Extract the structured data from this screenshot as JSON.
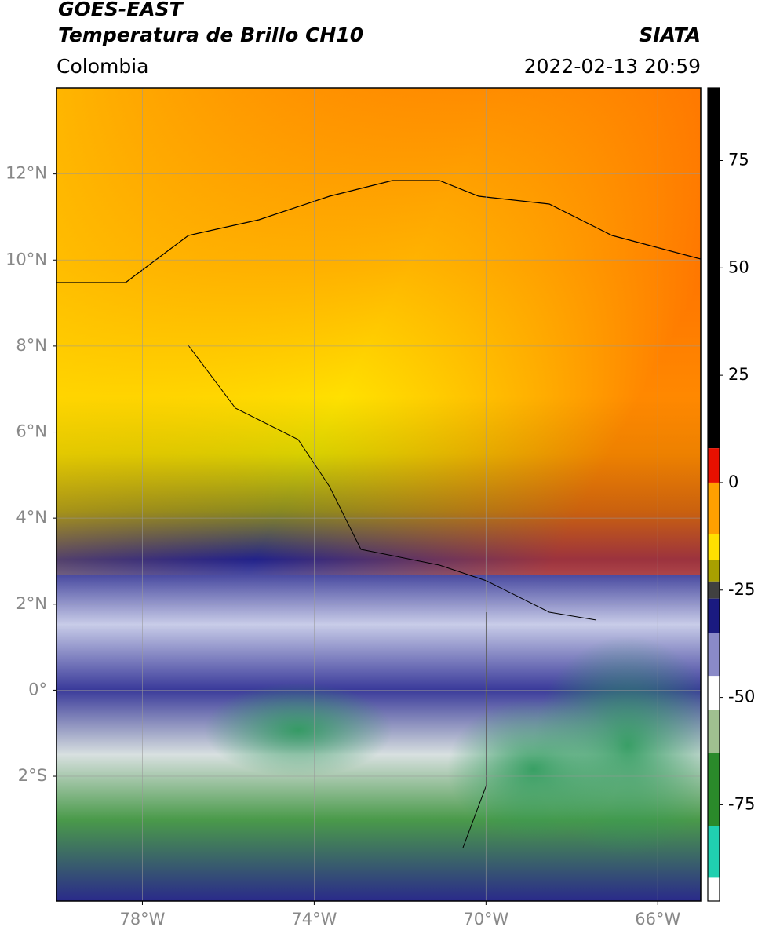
{
  "map": {
    "title": "GOES-EAST",
    "subtitle": "Temperatura de Brillo CH10",
    "source": "SIATA",
    "region": "Colombia",
    "datetime": "2022-02-13 20:59",
    "xlim": [
      -80,
      -65
    ],
    "ylim": [
      -4.9,
      14
    ],
    "xticks": [
      {
        "value": -78,
        "label": "78°W"
      },
      {
        "value": -74,
        "label": "74°W"
      },
      {
        "value": -70,
        "label": "70°W"
      },
      {
        "value": -66,
        "label": "66°W"
      }
    ],
    "yticks": [
      {
        "value": 12,
        "label": "12°N"
      },
      {
        "value": 10,
        "label": "10°N"
      },
      {
        "value": 8,
        "label": "8°N"
      },
      {
        "value": 6,
        "label": "6°N"
      },
      {
        "value": 4,
        "label": "4°N"
      },
      {
        "value": 2,
        "label": "2°N"
      },
      {
        "value": 0,
        "label": "0°"
      },
      {
        "value": -2,
        "label": "2°S"
      }
    ],
    "grid": true,
    "colorbar": {
      "lim": [
        -97.4,
        91.9
      ],
      "ticks": [
        75,
        50,
        25,
        0,
        -25,
        -50,
        -75
      ],
      "segments": [
        {
          "from": 8,
          "to": 91.9,
          "color": "#000000"
        },
        {
          "from": 0,
          "to": 8,
          "color": "#e81000"
        },
        {
          "from": -12,
          "to": 0,
          "color": "#ffa000"
        },
        {
          "from": -18,
          "to": -12,
          "color": "#ffe000"
        },
        {
          "from": -23,
          "to": -18,
          "color": "#a8a000"
        },
        {
          "from": -27,
          "to": -23,
          "color": "#404040"
        },
        {
          "from": -35,
          "to": -27,
          "color": "#1a1a80"
        },
        {
          "from": -45,
          "to": -35,
          "color": "#8a8ac8"
        },
        {
          "from": -53,
          "to": -45,
          "color": "#ffffff"
        },
        {
          "from": -63,
          "to": -53,
          "color": "#a0c090"
        },
        {
          "from": -80,
          "to": -63,
          "color": "#2a8a2a"
        },
        {
          "from": -92,
          "to": -80,
          "color": "#20d0b0"
        },
        {
          "from": -97.4,
          "to": -92,
          "color": "#ffffff"
        }
      ]
    }
  }
}
